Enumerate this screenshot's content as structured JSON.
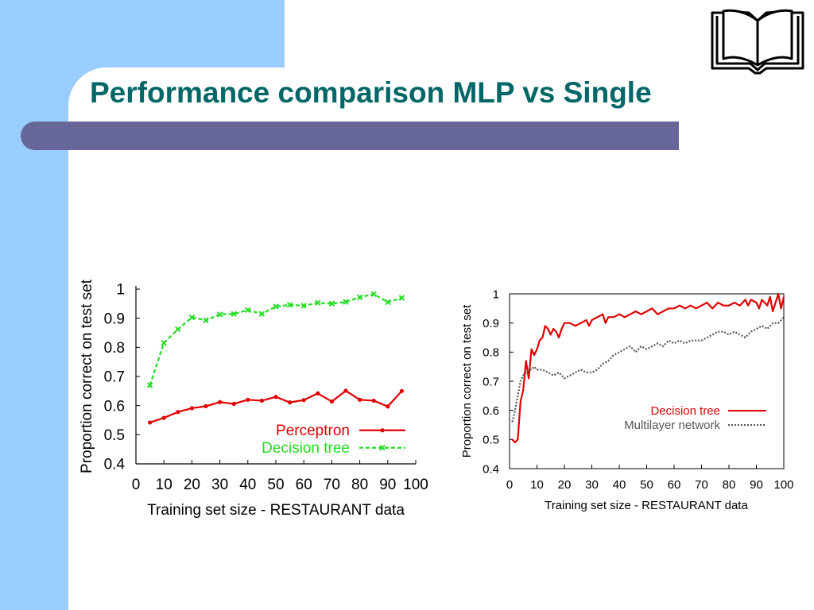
{
  "slide": {
    "title": "Performance comparison MLP vs Single",
    "title_color": "#006666",
    "logo_icon": "open-book-icon"
  },
  "chart_data": [
    {
      "type": "line",
      "title": "",
      "xlabel": "Training set size - RESTAURANT data",
      "ylabel": "Proportion correct on test set",
      "xlim": [
        0,
        100
      ],
      "ylim": [
        0.4,
        1
      ],
      "x_ticks": [
        "0",
        "10",
        "20",
        "30",
        "40",
        "50",
        "60",
        "70",
        "80",
        "90",
        "100"
      ],
      "y_ticks": [
        "0.4",
        "0.5",
        "0.6",
        "0.7",
        "0.8",
        "0.9",
        "1"
      ],
      "grid": false,
      "legend_position": "bottom-right",
      "x": [
        5,
        10,
        15,
        20,
        25,
        30,
        35,
        40,
        45,
        50,
        55,
        60,
        65,
        70,
        75,
        80,
        85,
        90,
        95
      ],
      "series": [
        {
          "name": "Perceptron",
          "color": "#e00000",
          "style": "solid",
          "marker": "dot",
          "values": [
            0.542,
            0.558,
            0.578,
            0.591,
            0.598,
            0.612,
            0.606,
            0.62,
            0.617,
            0.63,
            0.611,
            0.619,
            0.642,
            0.614,
            0.651,
            0.62,
            0.617,
            0.597,
            0.65
          ]
        },
        {
          "name": "Decision tree",
          "color": "#22dd22",
          "style": "dashed",
          "marker": "x",
          "values": [
            0.67,
            0.815,
            0.862,
            0.903,
            0.893,
            0.913,
            0.915,
            0.928,
            0.915,
            0.94,
            0.946,
            0.943,
            0.953,
            0.95,
            0.956,
            0.972,
            0.983,
            0.955,
            0.97
          ]
        }
      ]
    },
    {
      "type": "line",
      "title": "",
      "xlabel": "Training set size - RESTAURANT data",
      "ylabel": "Proportion correct on test set",
      "xlim": [
        0,
        100
      ],
      "ylim": [
        0.4,
        1
      ],
      "x_ticks": [
        "0",
        "10",
        "20",
        "30",
        "40",
        "50",
        "60",
        "70",
        "80",
        "90",
        "100"
      ],
      "y_ticks": [
        "0.4",
        "0.5",
        "0.6",
        "0.7",
        "0.8",
        "0.9",
        "1"
      ],
      "grid": false,
      "legend_position": "center-right",
      "series": [
        {
          "name": "Decision tree",
          "color": "#e00000",
          "style": "solid",
          "points": [
            [
              1,
              0.5
            ],
            [
              2,
              0.49
            ],
            [
              3,
              0.5
            ],
            [
              4,
              0.63
            ],
            [
              5,
              0.67
            ],
            [
              6,
              0.77
            ],
            [
              7,
              0.71
            ],
            [
              8,
              0.81
            ],
            [
              9,
              0.79
            ],
            [
              10,
              0.81
            ],
            [
              11,
              0.84
            ],
            [
              12,
              0.85
            ],
            [
              13,
              0.89
            ],
            [
              14,
              0.88
            ],
            [
              15,
              0.86
            ],
            [
              16,
              0.88
            ],
            [
              17,
              0.87
            ],
            [
              18,
              0.85
            ],
            [
              19,
              0.88
            ],
            [
              20,
              0.9
            ],
            [
              22,
              0.9
            ],
            [
              24,
              0.89
            ],
            [
              26,
              0.9
            ],
            [
              28,
              0.91
            ],
            [
              29,
              0.89
            ],
            [
              30,
              0.91
            ],
            [
              32,
              0.92
            ],
            [
              34,
              0.93
            ],
            [
              35,
              0.9
            ],
            [
              36,
              0.92
            ],
            [
              38,
              0.92
            ],
            [
              40,
              0.93
            ],
            [
              42,
              0.92
            ],
            [
              44,
              0.93
            ],
            [
              46,
              0.94
            ],
            [
              48,
              0.93
            ],
            [
              50,
              0.94
            ],
            [
              52,
              0.95
            ],
            [
              54,
              0.93
            ],
            [
              56,
              0.94
            ],
            [
              58,
              0.95
            ],
            [
              60,
              0.95
            ],
            [
              62,
              0.96
            ],
            [
              64,
              0.95
            ],
            [
              66,
              0.96
            ],
            [
              68,
              0.95
            ],
            [
              70,
              0.96
            ],
            [
              72,
              0.97
            ],
            [
              74,
              0.95
            ],
            [
              76,
              0.97
            ],
            [
              78,
              0.96
            ],
            [
              80,
              0.96
            ],
            [
              82,
              0.97
            ],
            [
              84,
              0.96
            ],
            [
              86,
              0.98
            ],
            [
              87,
              0.96
            ],
            [
              88,
              0.98
            ],
            [
              90,
              0.97
            ],
            [
              91,
              0.95
            ],
            [
              92,
              0.98
            ],
            [
              93,
              0.97
            ],
            [
              94,
              0.96
            ],
            [
              95,
              0.99
            ],
            [
              96,
              0.94
            ],
            [
              97,
              0.97
            ],
            [
              98,
              1.0
            ],
            [
              99,
              0.95
            ],
            [
              100,
              0.99
            ]
          ]
        },
        {
          "name": "Multilayer network",
          "color": "#555555",
          "style": "dotted",
          "points": [
            [
              1,
              0.56
            ],
            [
              2,
              0.6
            ],
            [
              3,
              0.65
            ],
            [
              4,
              0.7
            ],
            [
              5,
              0.72
            ],
            [
              6,
              0.73
            ],
            [
              7,
              0.74
            ],
            [
              8,
              0.74
            ],
            [
              9,
              0.75
            ],
            [
              10,
              0.74
            ],
            [
              12,
              0.74
            ],
            [
              14,
              0.73
            ],
            [
              16,
              0.72
            ],
            [
              18,
              0.73
            ],
            [
              20,
              0.71
            ],
            [
              22,
              0.72
            ],
            [
              24,
              0.73
            ],
            [
              26,
              0.74
            ],
            [
              28,
              0.73
            ],
            [
              30,
              0.73
            ],
            [
              32,
              0.74
            ],
            [
              34,
              0.76
            ],
            [
              36,
              0.77
            ],
            [
              38,
              0.79
            ],
            [
              40,
              0.8
            ],
            [
              42,
              0.81
            ],
            [
              44,
              0.82
            ],
            [
              46,
              0.8
            ],
            [
              48,
              0.82
            ],
            [
              50,
              0.81
            ],
            [
              52,
              0.82
            ],
            [
              54,
              0.83
            ],
            [
              56,
              0.82
            ],
            [
              58,
              0.84
            ],
            [
              60,
              0.83
            ],
            [
              62,
              0.84
            ],
            [
              64,
              0.83
            ],
            [
              66,
              0.84
            ],
            [
              68,
              0.84
            ],
            [
              70,
              0.84
            ],
            [
              72,
              0.85
            ],
            [
              74,
              0.86
            ],
            [
              76,
              0.87
            ],
            [
              78,
              0.87
            ],
            [
              80,
              0.86
            ],
            [
              82,
              0.87
            ],
            [
              84,
              0.86
            ],
            [
              86,
              0.85
            ],
            [
              88,
              0.87
            ],
            [
              90,
              0.88
            ],
            [
              92,
              0.89
            ],
            [
              94,
              0.88
            ],
            [
              96,
              0.9
            ],
            [
              98,
              0.9
            ],
            [
              100,
              0.92
            ]
          ]
        }
      ]
    }
  ]
}
